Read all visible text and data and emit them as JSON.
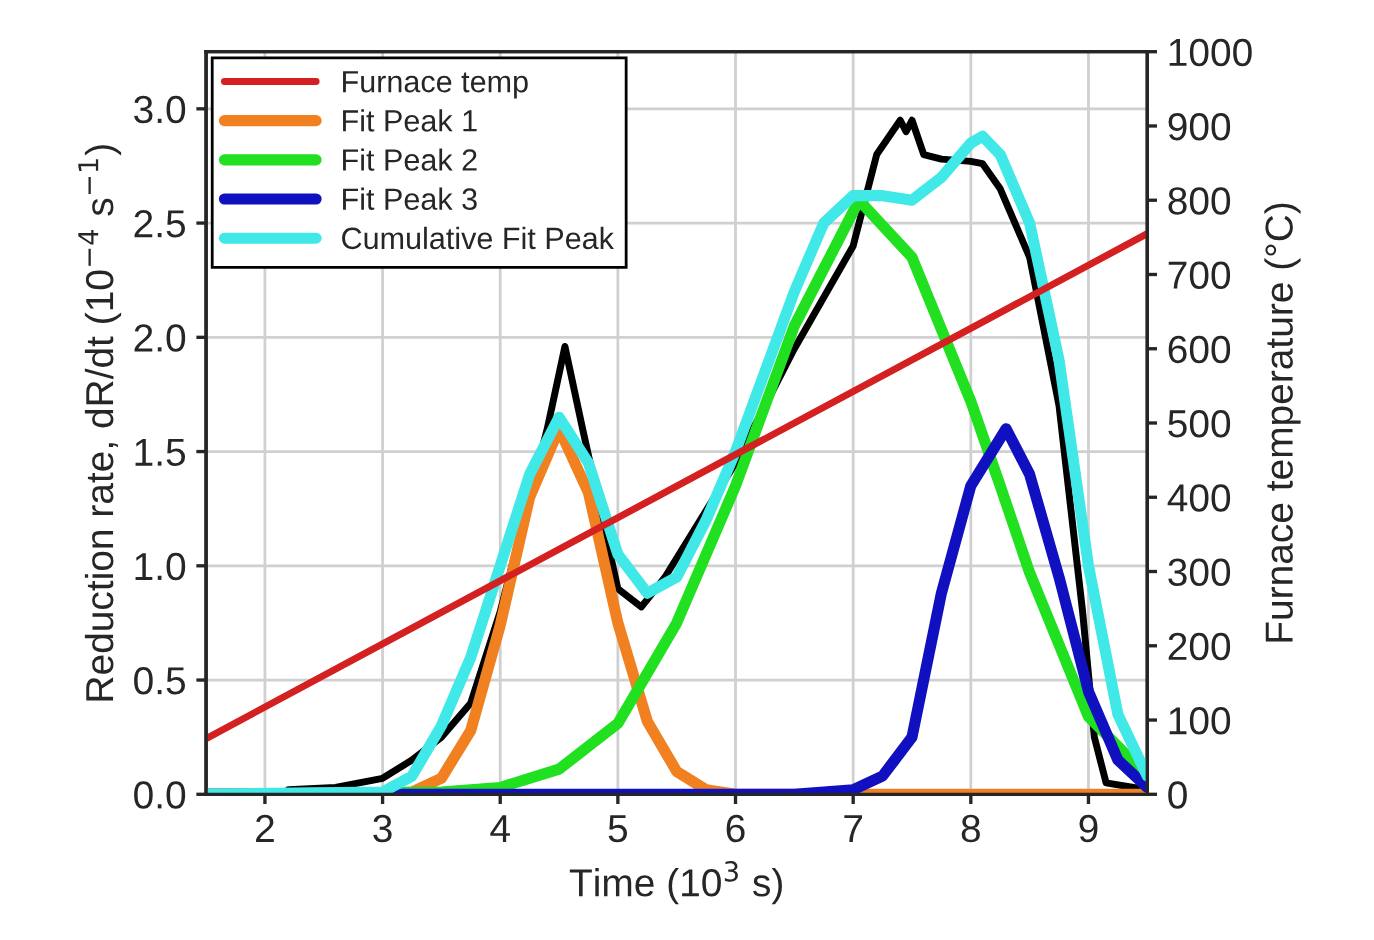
{
  "chart_data": {
    "type": "line",
    "xlabel": "Time (10$^{3}$ s)",
    "ylabel": "Reduction rate, dR/dt (10$^{−4}$ s$^{−1}$)",
    "y2label": "Furnace temperature (°C)",
    "xlim": [
      1.5,
      9.5
    ],
    "xticks": [
      2,
      3,
      4,
      5,
      6,
      7,
      8,
      9
    ],
    "ylim": [
      0,
      3.25
    ],
    "yticks": [
      {
        "value": 0,
        "label": "0.0"
      },
      0.5,
      {
        "value": 1,
        "label": "1.0"
      },
      1.5,
      {
        "value": 2,
        "label": "2.0"
      },
      2.5,
      {
        "value": 3,
        "label": "3.0"
      }
    ],
    "y2lim": [
      0,
      1000
    ],
    "y2ticks": [
      0,
      100,
      200,
      300,
      400,
      500,
      600,
      700,
      800,
      900,
      1000
    ],
    "grid": true,
    "legend": "top left",
    "marker": "none",
    "line_style": "solid",
    "series": [
      {
        "name": "Furnace temp",
        "color": "#d42020",
        "axis": "y2",
        "x": [
          1.5,
          9.5
        ],
        "values": [
          75,
          755
        ]
      },
      {
        "color": "#000000",
        "x": [
          2.2,
          2.6,
          3.0,
          3.25,
          3.5,
          3.75,
          4.0,
          4.4,
          4.55,
          4.7,
          5.0,
          5.2,
          5.4,
          6.0,
          6.5,
          7.0,
          7.2,
          7.4,
          7.45,
          7.5,
          7.6,
          7.75,
          8.0,
          8.1,
          8.25,
          8.5,
          8.75,
          8.95,
          9.05,
          9.15,
          9.5
        ],
        "values": [
          0.02,
          0.03,
          0.07,
          0.15,
          0.25,
          0.4,
          0.8,
          1.6,
          1.96,
          1.6,
          0.9,
          0.82,
          0.95,
          1.45,
          1.95,
          2.4,
          2.8,
          2.95,
          2.9,
          2.95,
          2.8,
          2.78,
          2.77,
          2.76,
          2.65,
          2.35,
          1.7,
          0.8,
          0.25,
          0.05,
          0.02
        ]
      },
      {
        "name": "Fit Peak 1",
        "color": "#f08020",
        "x": [
          1.5,
          3.0,
          3.25,
          3.5,
          3.75,
          4.0,
          4.25,
          4.5,
          4.75,
          5.0,
          5.25,
          5.5,
          5.75,
          6.0,
          9.5
        ],
        "values": [
          0,
          0,
          0.01,
          0.07,
          0.28,
          0.74,
          1.3,
          1.6,
          1.32,
          0.75,
          0.32,
          0.1,
          0.02,
          0,
          0
        ]
      },
      {
        "name": "Fit Peak 2",
        "color": "#20e020",
        "x": [
          1.5,
          3.5,
          4.0,
          4.5,
          5.0,
          5.5,
          6.0,
          6.5,
          7.05,
          7.5,
          8.0,
          8.25,
          8.5,
          9.0,
          9.5
        ],
        "values": [
          0,
          0.01,
          0.03,
          0.11,
          0.31,
          0.75,
          1.35,
          2.05,
          2.6,
          2.35,
          1.72,
          1.35,
          0.97,
          0.34,
          0.08
        ]
      },
      {
        "name": "Fit Peak 3",
        "color": "#1010c0",
        "x": [
          1.5,
          6.5,
          7.0,
          7.25,
          7.5,
          7.75,
          8.0,
          8.3,
          8.5,
          8.75,
          9.0,
          9.25,
          9.5
        ],
        "values": [
          0,
          0,
          0.02,
          0.08,
          0.25,
          0.88,
          1.35,
          1.6,
          1.4,
          0.95,
          0.45,
          0.15,
          0.03
        ]
      },
      {
        "name": "Cumulative Fit Peak",
        "color": "#40e8e8",
        "x": [
          1.5,
          3.0,
          3.25,
          3.5,
          3.75,
          4.0,
          4.25,
          4.5,
          4.75,
          5.0,
          5.25,
          5.5,
          5.75,
          6.0,
          6.25,
          6.5,
          6.75,
          7.0,
          7.25,
          7.5,
          7.75,
          8.0,
          8.1,
          8.25,
          8.5,
          8.75,
          9.0,
          9.25,
          9.5
        ],
        "values": [
          0,
          0.01,
          0.08,
          0.3,
          0.6,
          1.0,
          1.4,
          1.65,
          1.45,
          1.05,
          0.88,
          0.95,
          1.2,
          1.5,
          1.85,
          2.2,
          2.5,
          2.62,
          2.62,
          2.6,
          2.7,
          2.85,
          2.88,
          2.8,
          2.5,
          1.9,
          1.0,
          0.35,
          0.08
        ]
      }
    ]
  }
}
